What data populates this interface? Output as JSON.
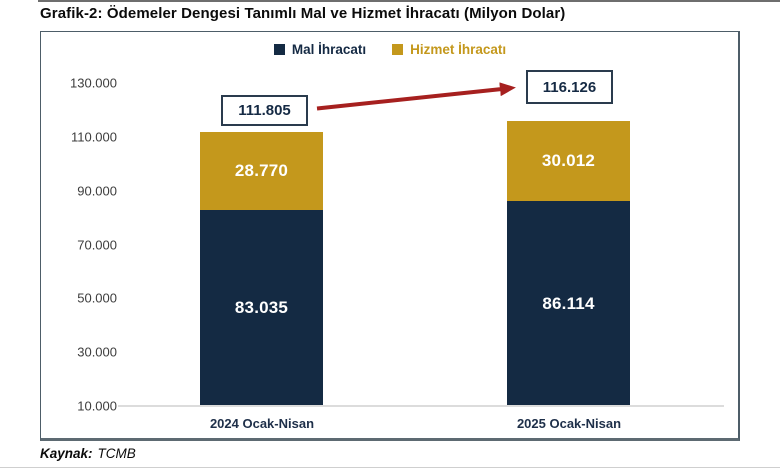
{
  "title": "Grafik-2: Ödemeler Dengesi Tanımlı Mal ve Hizmet İhracatı (Milyon Dolar)",
  "legend": {
    "items": [
      {
        "label": "Mal İhracatı",
        "color": "#142a43",
        "text_color": "#152a44"
      },
      {
        "label": "Hizmet İhracatı",
        "color": "#c4981c",
        "text_color": "#c4981c"
      }
    ]
  },
  "chart_data": {
    "type": "bar",
    "stacked": true,
    "title": "Ödemeler Dengesi Tanımlı Mal ve Hizmet İhracatı",
    "unit": "Milyon Dolar",
    "categories": [
      "2024 Ocak-Nisan",
      "2025 Ocak-Nisan"
    ],
    "series": [
      {
        "name": "Mal İhracatı",
        "color": "#142a43",
        "values": [
          83035,
          86114
        ],
        "value_labels": [
          "83.035",
          "86.114"
        ]
      },
      {
        "name": "Hizmet İhracatı",
        "color": "#c4981c",
        "values": [
          28770,
          30012
        ],
        "value_labels": [
          "28.770",
          "30.012"
        ]
      }
    ],
    "totals": {
      "values": [
        111805,
        116126
      ],
      "labels": [
        "111.805",
        "116.126"
      ]
    },
    "y_axis": {
      "min": 10000,
      "max": 130000,
      "step": 20000,
      "tick_labels": [
        "10.000",
        "30.000",
        "50.000",
        "70.000",
        "90.000",
        "110.000",
        "130.000"
      ]
    },
    "grid": false,
    "legend_position": "top"
  },
  "annotation": {
    "arrow_color": "#a6201f"
  },
  "source": {
    "label": "Kaynak:",
    "value": "TCMB"
  }
}
